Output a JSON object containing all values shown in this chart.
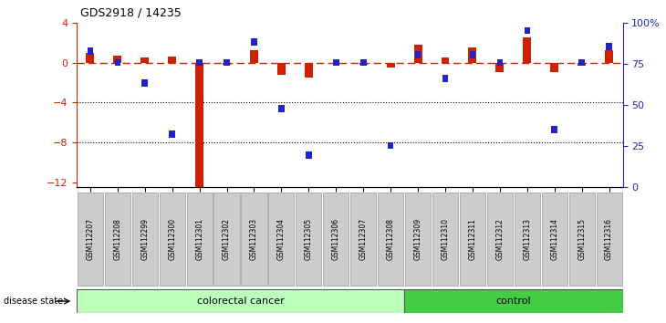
{
  "title": "GDS2918 / 14235",
  "samples": [
    "GSM112207",
    "GSM112208",
    "GSM112299",
    "GSM112300",
    "GSM112301",
    "GSM112302",
    "GSM112303",
    "GSM112304",
    "GSM112305",
    "GSM112306",
    "GSM112307",
    "GSM112308",
    "GSM112309",
    "GSM112310",
    "GSM112311",
    "GSM112312",
    "GSM112313",
    "GSM112314",
    "GSM112315",
    "GSM112316"
  ],
  "log_ratio": [
    1.0,
    0.7,
    0.5,
    0.6,
    -12.5,
    -0.2,
    1.2,
    -1.2,
    -1.5,
    -0.1,
    -0.2,
    -0.5,
    1.8,
    0.5,
    1.5,
    -1.0,
    2.5,
    -1.0,
    -0.3,
    1.2
  ],
  "percentile": [
    82,
    75,
    62,
    30,
    75,
    75,
    88,
    46,
    17,
    75,
    75,
    23,
    80,
    65,
    80,
    75,
    95,
    33,
    75,
    85
  ],
  "colorectal_count": 12,
  "control_count": 8,
  "ylim_left": [
    -12.5,
    4
  ],
  "ylim_right": [
    0,
    100
  ],
  "yticks_left": [
    4,
    0,
    -4,
    -8,
    -12
  ],
  "yticks_right": [
    100,
    75,
    50,
    25,
    0
  ],
  "bar_color_red": "#cc2200",
  "bar_color_blue": "#2222cc",
  "dashed_line_color": "#cc2200",
  "colorectal_color": "#bbffbb",
  "control_color": "#44cc44",
  "tick_bg": "#cccccc"
}
